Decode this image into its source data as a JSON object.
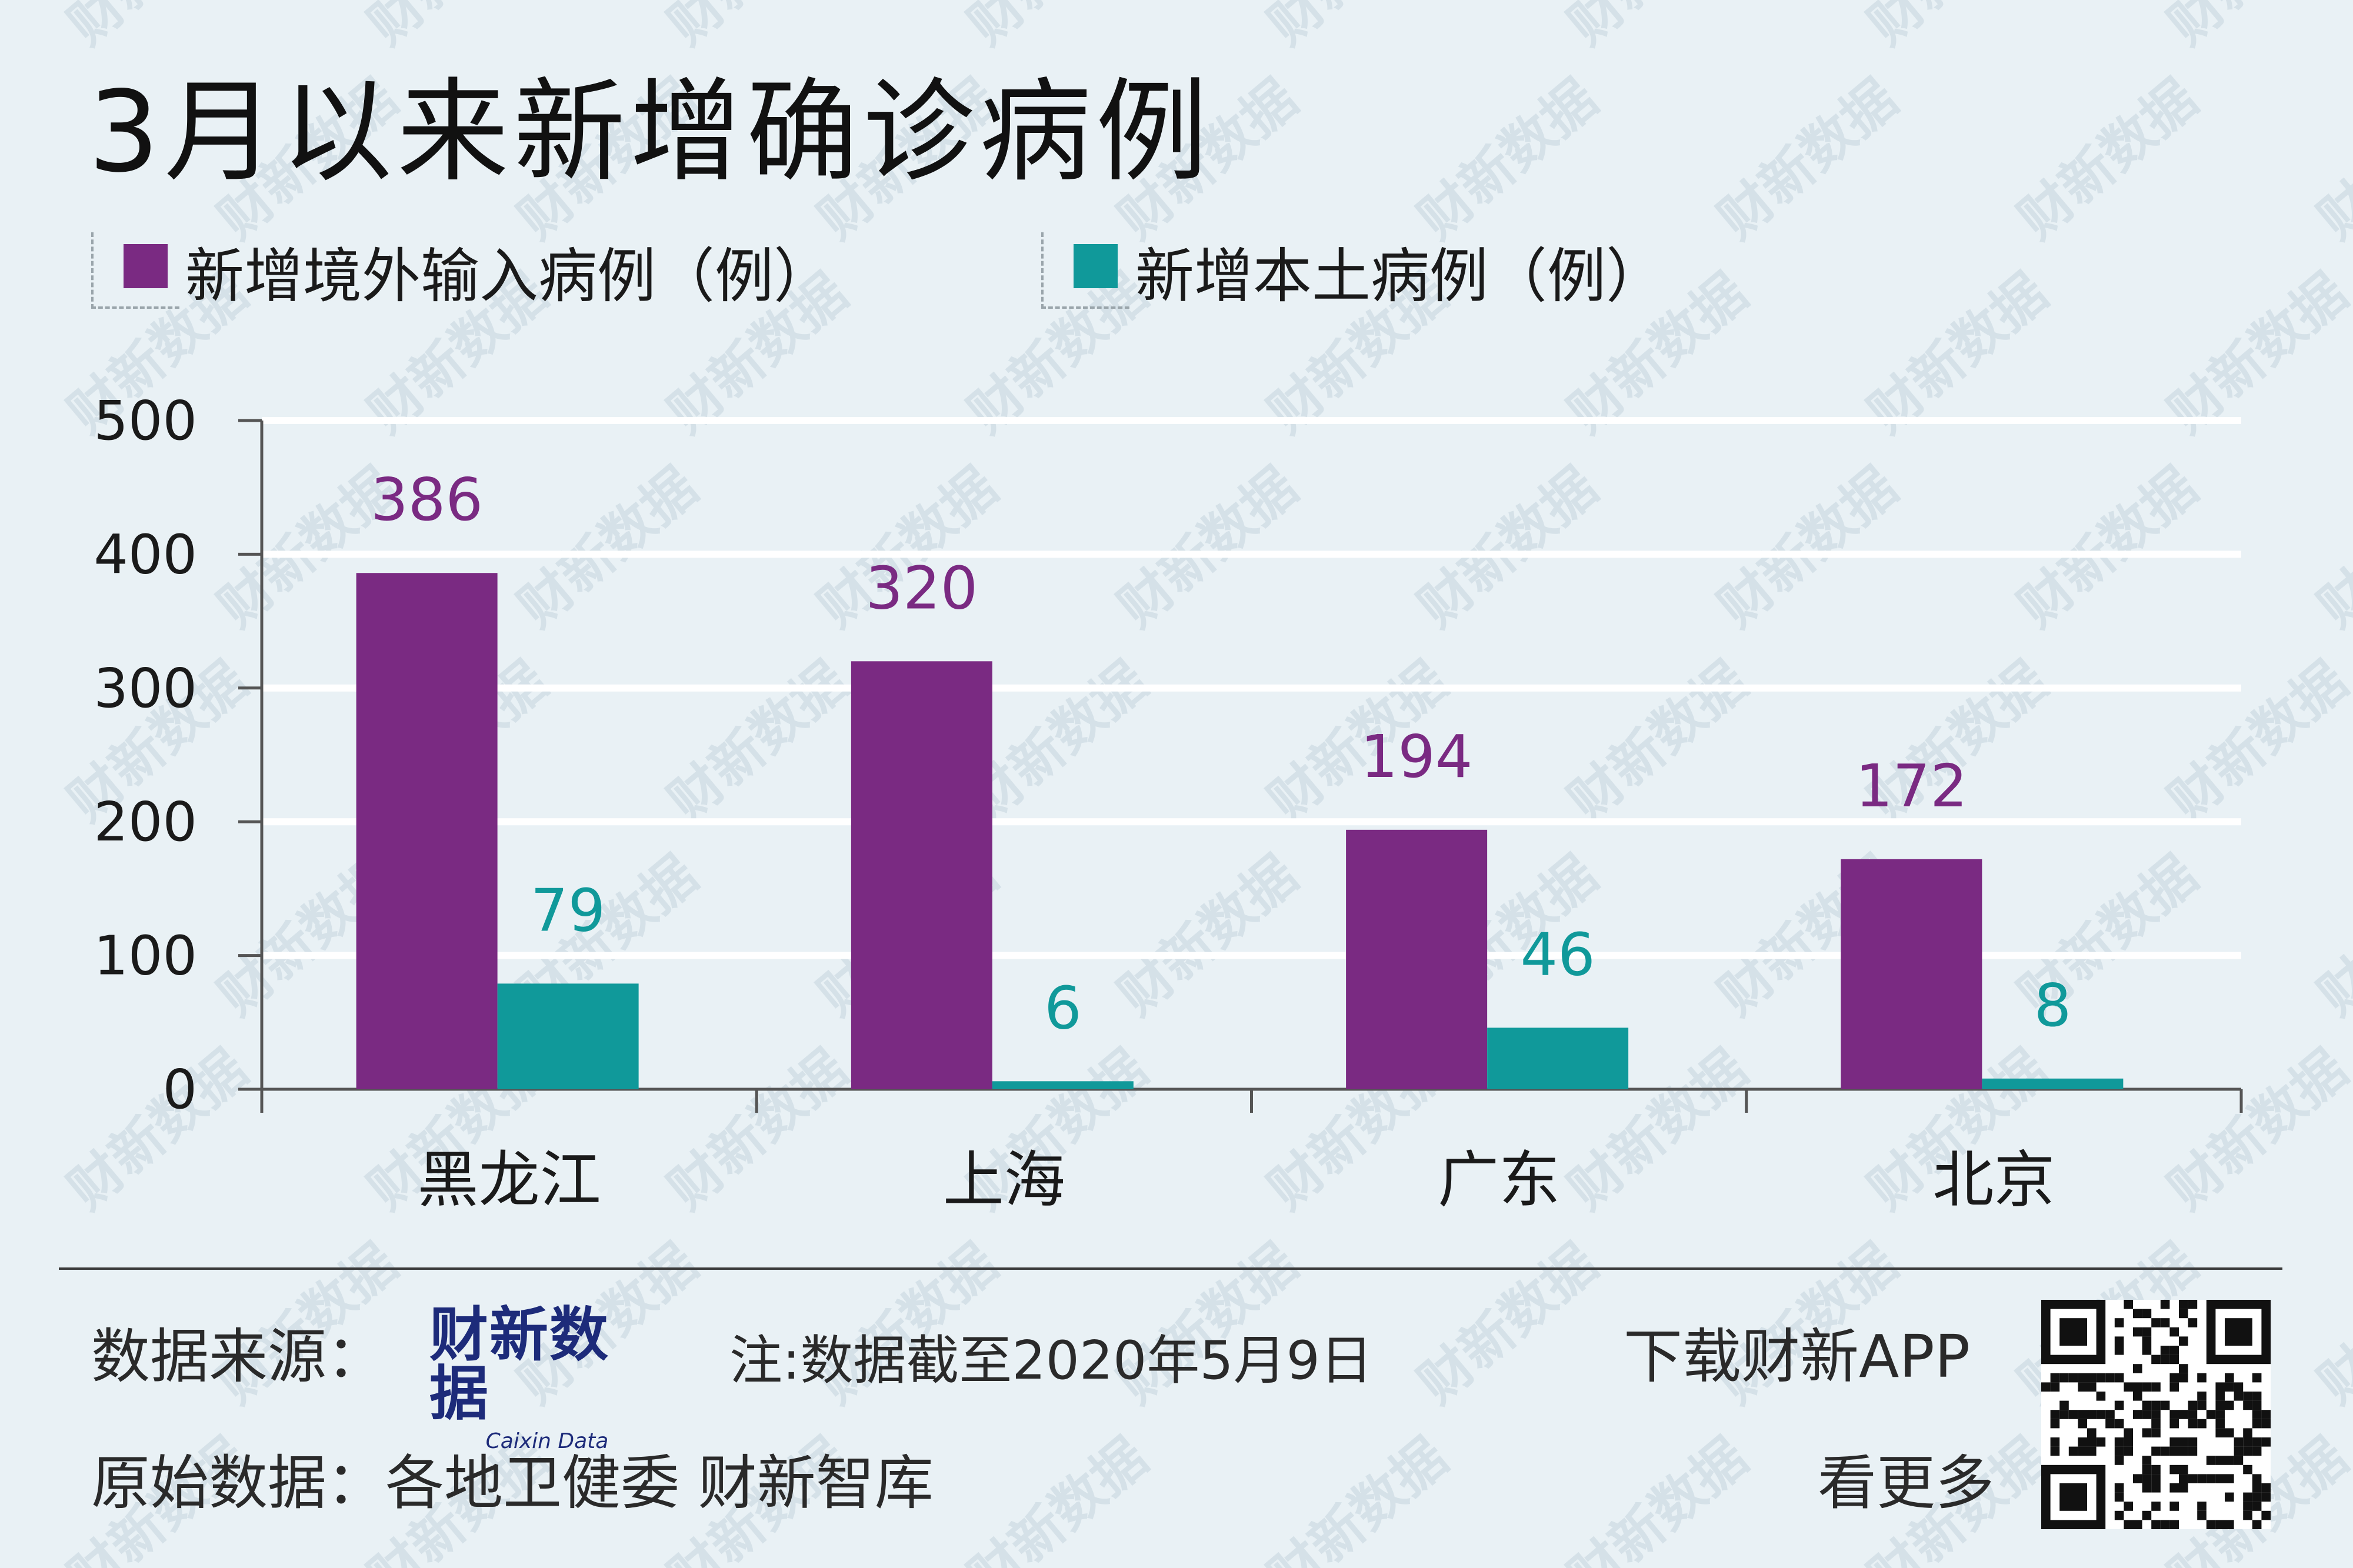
{
  "title": "3月以来新增确诊病例",
  "legend": {
    "import_label": "新增境外输入病例（例）",
    "local_label": "新增本土病例（例）"
  },
  "colors": {
    "import": "#7a2a82",
    "local": "#10999a",
    "background": "#e9f1f5",
    "grid": "#ffffff",
    "axis": "#555555"
  },
  "chart_data": {
    "type": "bar",
    "title": "3月以来新增确诊病例",
    "xlabel": "",
    "ylabel": "",
    "ylim": [
      0,
      500
    ],
    "yticks": [
      "0",
      "100",
      "200",
      "300",
      "400",
      "500"
    ],
    "grid": true,
    "legend_position": "top-left",
    "categories": [
      "黑龙江",
      "上海",
      "广东",
      "北京"
    ],
    "series": [
      {
        "name": "新增境外输入病例（例）",
        "values": [
          386,
          320,
          194,
          172
        ]
      },
      {
        "name": "新增本土病例（例）",
        "values": [
          79,
          6,
          46,
          8
        ]
      }
    ]
  },
  "footer": {
    "source_label": "数据来源：",
    "brand_name": "财新数据",
    "brand_sub": "Caixin Data",
    "note": "注:数据截至2020年5月9日",
    "original_label": "原始数据：各地卫健委 财新智库",
    "download": "下载财新APP",
    "more": "看更多"
  },
  "watermark_text": "财新数据",
  "icons": {
    "qr": "qr-code-icon"
  }
}
